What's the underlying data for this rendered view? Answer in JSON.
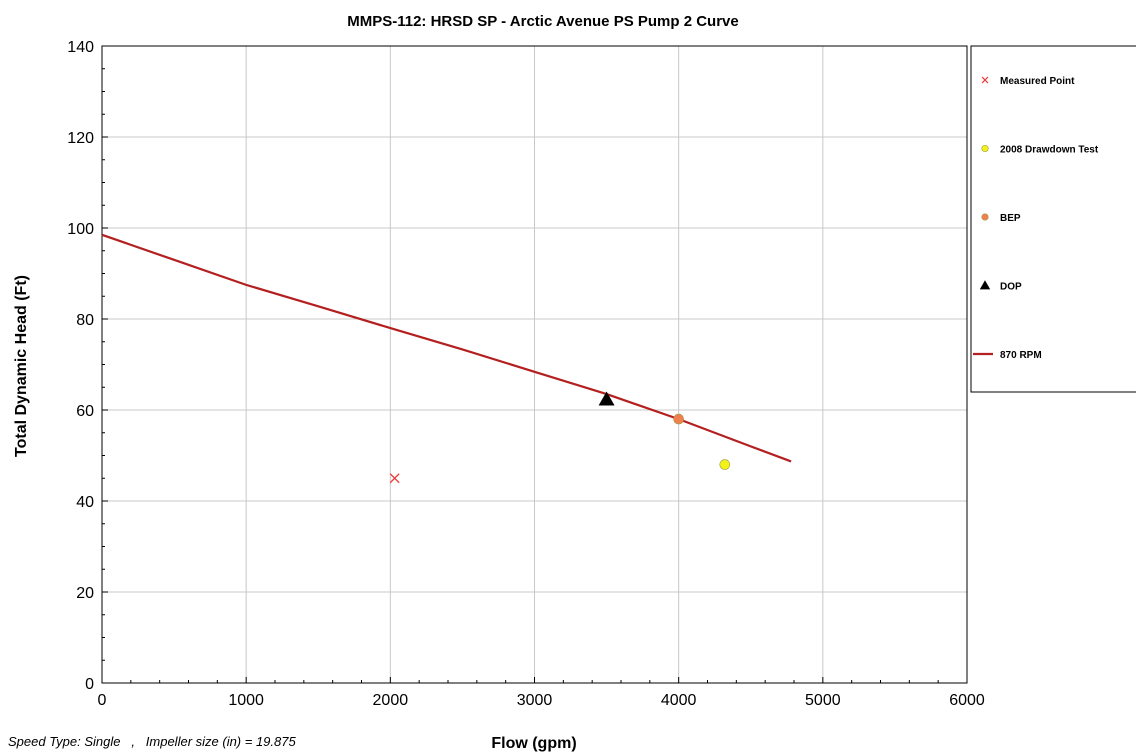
{
  "chart_data": {
    "type": "scatter",
    "title": "MMPS-112: HRSD SP - Arctic Avenue PS Pump 2 Curve",
    "xlabel": "Flow (gpm)",
    "ylabel": "Total Dynamic Head (Ft)",
    "xlim": [
      0,
      6000
    ],
    "ylim": [
      0,
      140
    ],
    "x_major_ticks": [
      0,
      1000,
      2000,
      3000,
      4000,
      5000,
      6000
    ],
    "y_major_ticks": [
      0,
      20,
      40,
      60,
      80,
      100,
      120,
      140
    ],
    "x_tick_labels": [
      "0",
      "1000",
      "2000",
      "3000",
      "4000",
      "5000",
      "6000"
    ],
    "y_tick_labels": [
      "0",
      "20",
      "40",
      "60",
      "80",
      "100",
      "120",
      "140"
    ],
    "grid": true,
    "legend_position": "right",
    "series": [
      {
        "name": "Measured Point",
        "kind": "marker",
        "marker": "x",
        "color": "#e8413c",
        "points": [
          [
            2030,
            45
          ]
        ]
      },
      {
        "name": "2008 Drawdown Test",
        "kind": "marker",
        "marker": "circle",
        "color": "#f2f21a",
        "points": [
          [
            4320,
            48
          ]
        ]
      },
      {
        "name": "BEP",
        "kind": "marker",
        "marker": "circle",
        "color": "#f08050",
        "points": [
          [
            4000,
            58
          ]
        ]
      },
      {
        "name": "DOP",
        "kind": "marker",
        "marker": "triangle",
        "color": "#000000",
        "points": [
          [
            3500,
            62.3
          ]
        ]
      },
      {
        "name": "870 RPM",
        "kind": "line",
        "color": "#b42020",
        "points": [
          [
            0,
            98.5
          ],
          [
            500,
            93
          ],
          [
            1000,
            87.5
          ],
          [
            1500,
            82.8
          ],
          [
            2000,
            78
          ],
          [
            2500,
            73.3
          ],
          [
            3000,
            68.4
          ],
          [
            3500,
            63.5
          ],
          [
            4000,
            58
          ],
          [
            4500,
            52
          ],
          [
            4780,
            48.7
          ]
        ]
      }
    ]
  },
  "footnote": {
    "speed_type": "Speed Type: Single   ,   Impeller size (in) = 19.875"
  }
}
